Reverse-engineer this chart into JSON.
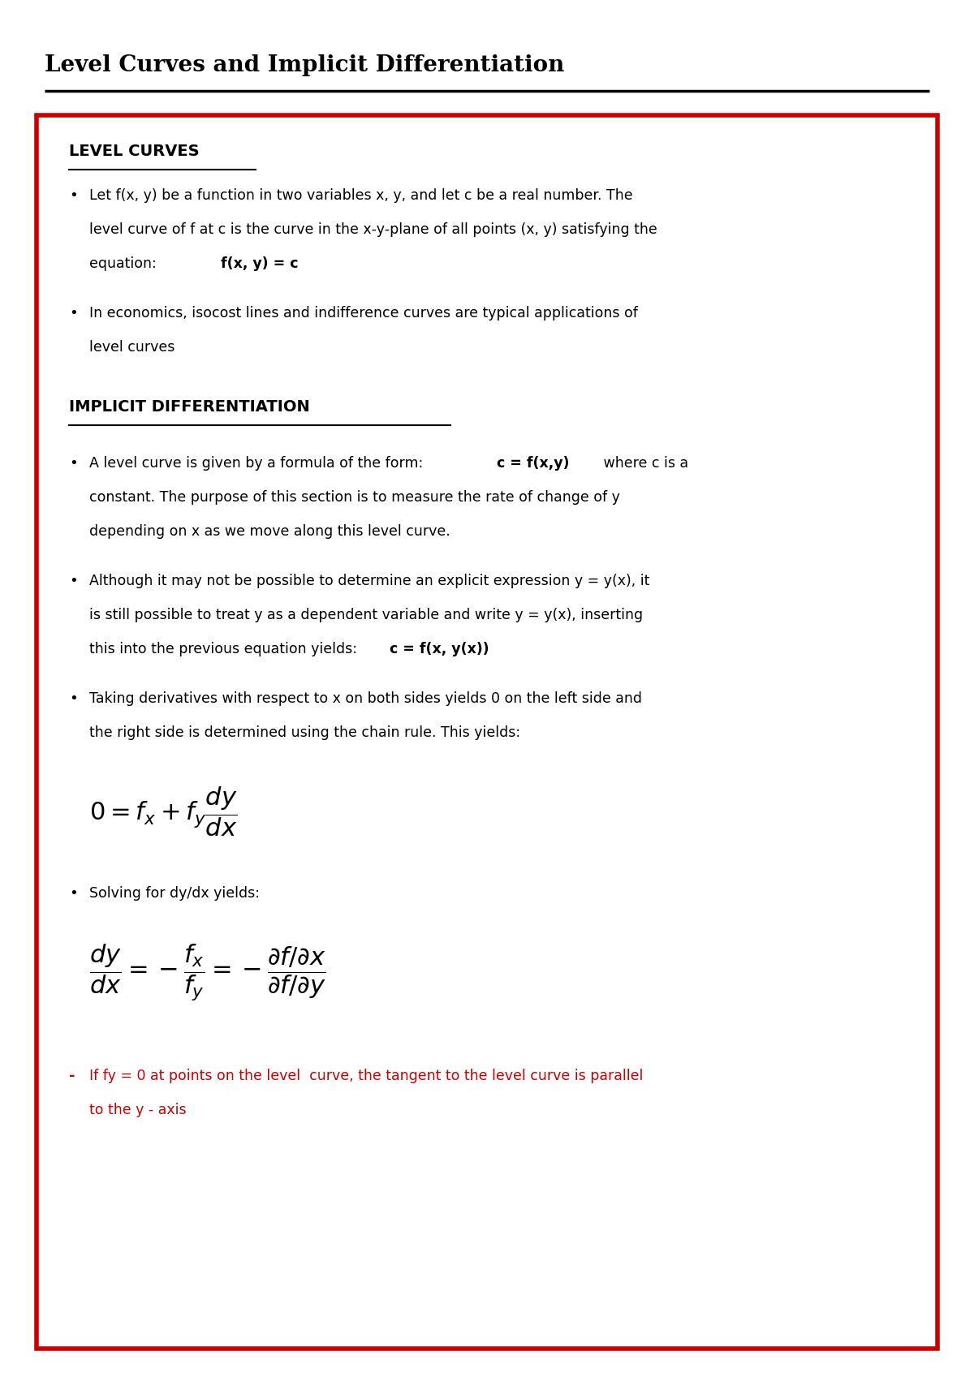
{
  "title": "Level Curves and Implicit Differentiation",
  "bg_color": "#ffffff",
  "title_color": "#000000",
  "box_border_color": "#cc0000",
  "section1_header": "LEVEL CURVES",
  "section2_header": "IMPLICIT DIFFERENTIATION",
  "solving_text": "Solving for dy/dx yields:",
  "note_color": "#cc0000",
  "formula1": "$0 = f_x + f_y\\dfrac{dy}{dx}$",
  "formula2": "$\\dfrac{dy}{dx} = -\\dfrac{f_x}{f_y} = -\\dfrac{\\partial f / \\partial x}{\\partial f / \\partial y}$"
}
